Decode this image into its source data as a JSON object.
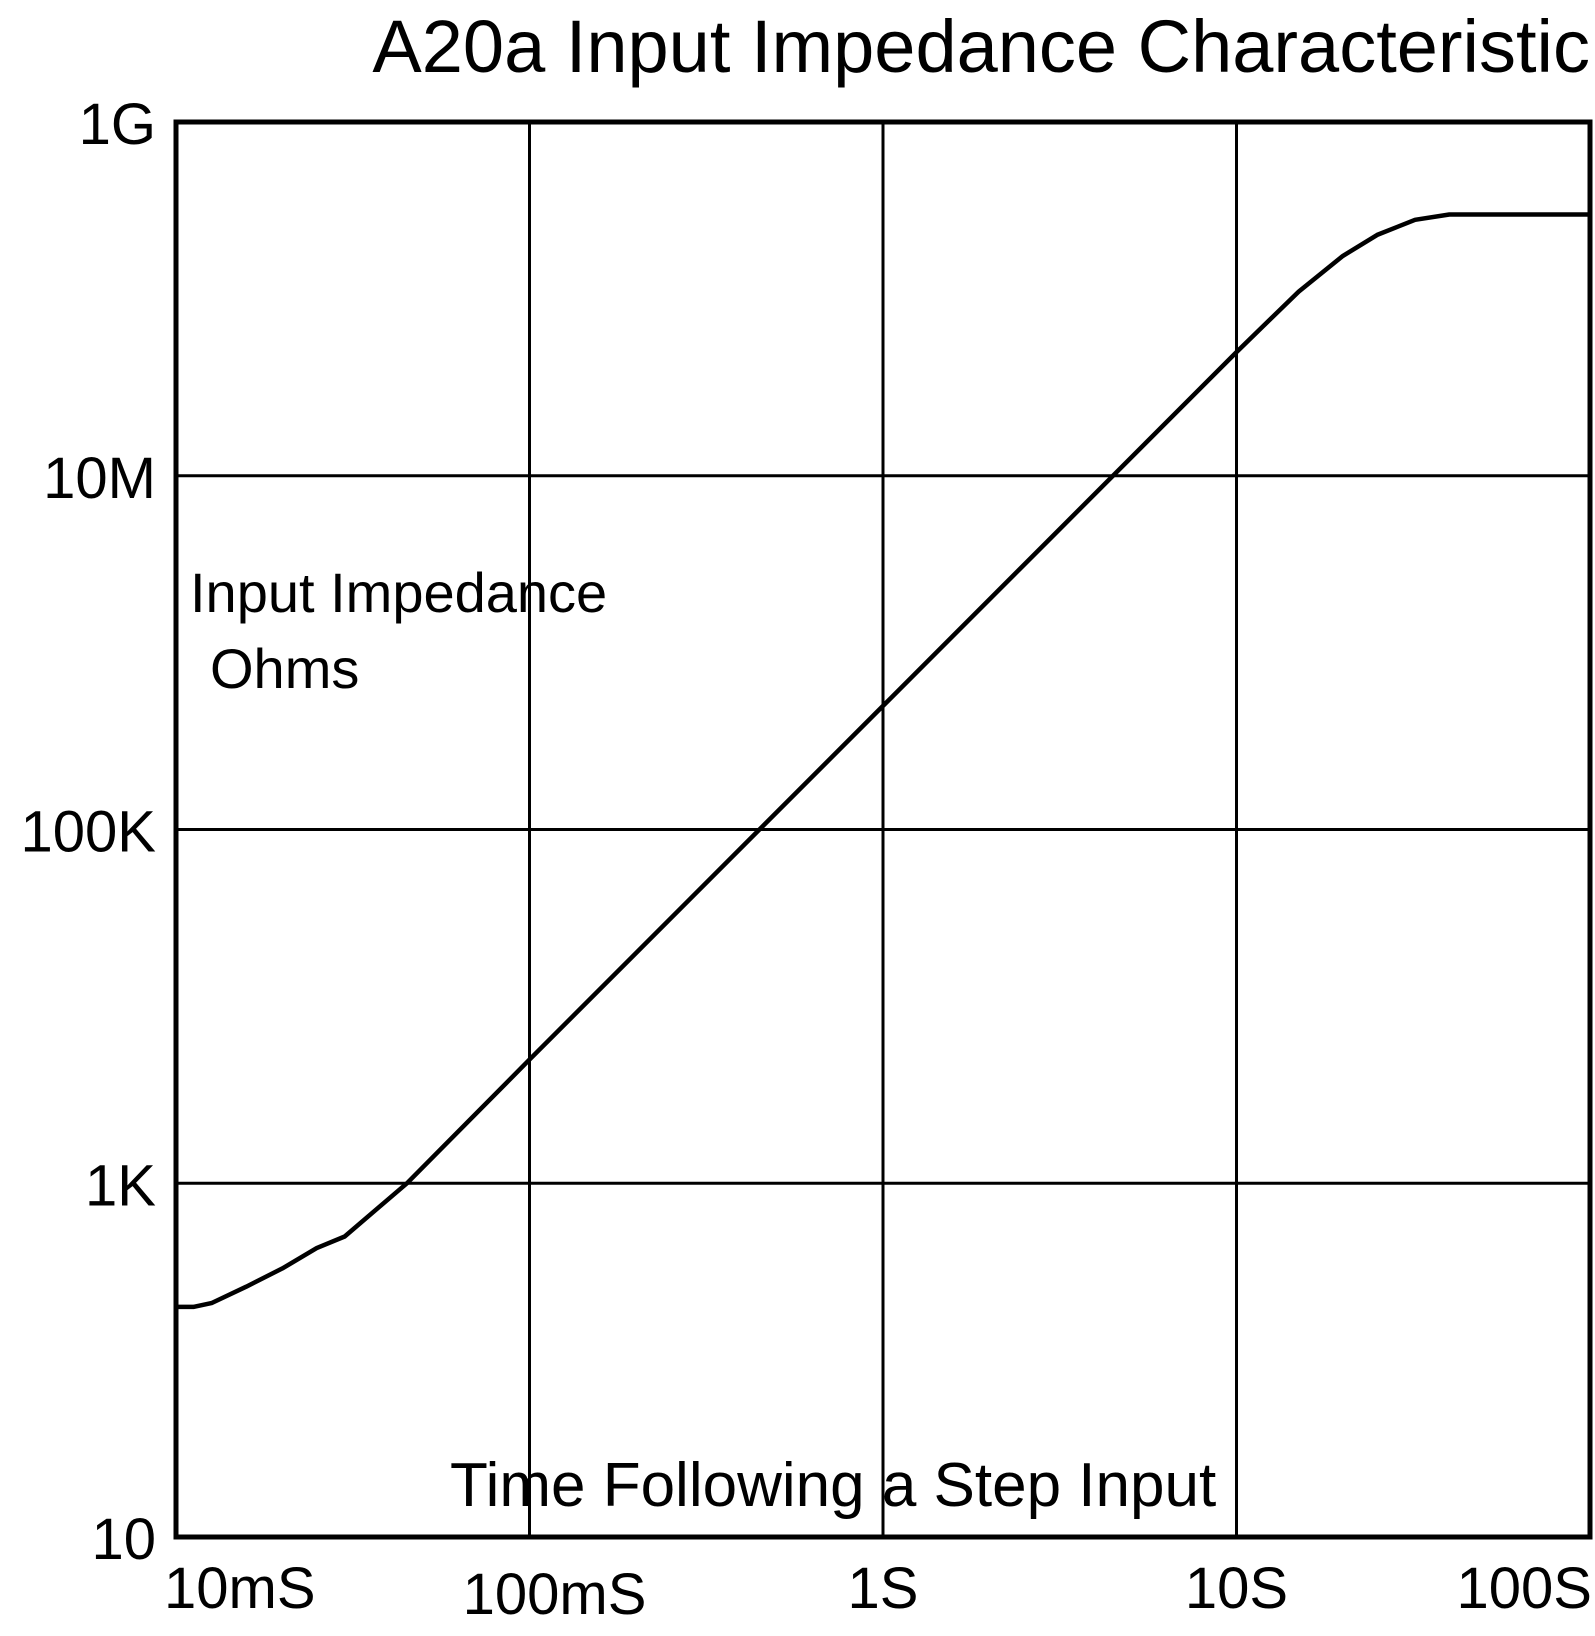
{
  "chart_data": {
    "type": "line",
    "title": "A20a Input Impedance Characteristic",
    "xlabel": "Time Following a Step Input",
    "ylabel_lines": [
      "Input Impedance",
      "Ohms"
    ],
    "x_scale": "log",
    "y_scale": "log",
    "xlim_seconds": [
      0.01,
      100
    ],
    "ylim_ohms": [
      10,
      1000000000
    ],
    "x_ticks": [
      {
        "value": 0.01,
        "label": "10mS"
      },
      {
        "value": 0.1,
        "label": "100mS"
      },
      {
        "value": 1,
        "label": "1S"
      },
      {
        "value": 10,
        "label": "10S"
      },
      {
        "value": 100,
        "label": "100S"
      }
    ],
    "y_ticks": [
      {
        "value": 10,
        "label": "10"
      },
      {
        "value": 1000,
        "label": "1K"
      },
      {
        "value": 100000,
        "label": "100K"
      },
      {
        "value": 10000000,
        "label": "10M"
      },
      {
        "value": 1000000000,
        "label": "1G"
      }
    ],
    "grid": true,
    "line_color": "#000000",
    "series": [
      {
        "points": [
          {
            "x": 0.01,
            "y": 200
          },
          {
            "x": 0.0112,
            "y": 200
          },
          {
            "x": 0.0126,
            "y": 210
          },
          {
            "x": 0.0158,
            "y": 260
          },
          {
            "x": 0.02,
            "y": 330
          },
          {
            "x": 0.025,
            "y": 430
          },
          {
            "x": 0.03,
            "y": 500
          },
          {
            "x": 0.045,
            "y": 1000
          },
          {
            "x": 0.1,
            "y": 5000
          },
          {
            "x": 0.3,
            "y": 45000
          },
          {
            "x": 1,
            "y": 500000
          },
          {
            "x": 3,
            "y": 4500000
          },
          {
            "x": 10,
            "y": 50000000
          },
          {
            "x": 15,
            "y": 110000000
          },
          {
            "x": 20,
            "y": 175000000
          },
          {
            "x": 25,
            "y": 230000000
          },
          {
            "x": 32,
            "y": 280000000
          },
          {
            "x": 40,
            "y": 300000000
          },
          {
            "x": 100,
            "y": 300000000
          }
        ]
      }
    ]
  }
}
